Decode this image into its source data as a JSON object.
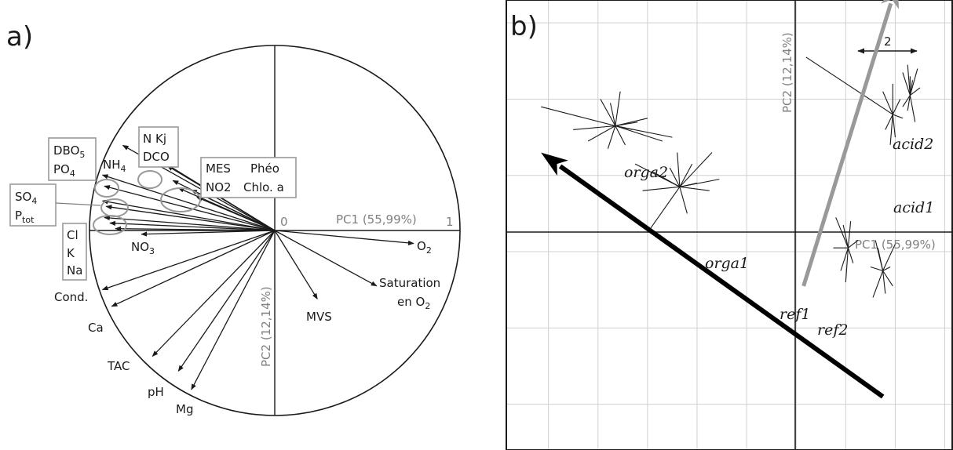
{
  "chart_data": [
    {
      "panel": "a)",
      "type": "scatter",
      "xlabel": "PC1 (55,99%)",
      "ylabel": "PC2 (12,14%)",
      "xlim": [
        -1,
        1
      ],
      "ylim": [
        -1,
        1
      ],
      "axis_ticks": {
        "origin": "0",
        "x_end": "1"
      },
      "grid": false,
      "vectors": [
        {
          "id": "nh4",
          "x": -0.82,
          "y": 0.46
        },
        {
          "id": "nkj",
          "x": -0.62,
          "y": 0.38
        },
        {
          "id": "dco",
          "x": -0.58,
          "y": 0.35
        },
        {
          "id": "mes",
          "x": -0.55,
          "y": 0.27
        },
        {
          "id": "pheo",
          "x": -0.52,
          "y": 0.23
        },
        {
          "id": "no2",
          "x": -0.45,
          "y": 0.22
        },
        {
          "id": "chloa",
          "x": -0.42,
          "y": 0.18
        },
        {
          "id": "dbo5",
          "x": -0.93,
          "y": 0.3
        },
        {
          "id": "po4",
          "x": -0.92,
          "y": 0.24
        },
        {
          "id": "so4",
          "x": -0.93,
          "y": 0.16
        },
        {
          "id": "ptot",
          "x": -0.91,
          "y": 0.13
        },
        {
          "id": "cl",
          "x": -0.92,
          "y": 0.07
        },
        {
          "id": "k",
          "x": -0.89,
          "y": 0.04
        },
        {
          "id": "na",
          "x": -0.86,
          "y": 0.01
        },
        {
          "id": "no3",
          "x": -0.72,
          "y": -0.02
        },
        {
          "id": "o2",
          "x": 0.75,
          "y": -0.07
        },
        {
          "id": "satO2",
          "x": 0.55,
          "y": -0.3
        },
        {
          "id": "mvs",
          "x": 0.23,
          "y": -0.37
        },
        {
          "id": "cond",
          "x": -0.93,
          "y": -0.32
        },
        {
          "id": "ca",
          "x": -0.88,
          "y": -0.41
        },
        {
          "id": "tac",
          "x": -0.66,
          "y": -0.68
        },
        {
          "id": "ph",
          "x": -0.52,
          "y": -0.76
        },
        {
          "id": "mg",
          "x": -0.45,
          "y": -0.86
        }
      ],
      "labels": {
        "nh4": [
          "NH",
          "4"
        ],
        "nkj_dco": [
          "N Kj",
          "DCO"
        ],
        "mes_group": [
          "MES",
          "Phéo",
          "NO2",
          "Chlo. a"
        ],
        "dbo_po": [
          "DBO",
          "5",
          "PO",
          "4"
        ],
        "so_ptot": [
          "SO",
          "4",
          "P",
          "tot"
        ],
        "cl_k_na": [
          "Cl",
          "K",
          "Na"
        ],
        "no3": [
          "NO",
          "3"
        ],
        "o2": [
          "O",
          "2"
        ],
        "sat": [
          "Saturation",
          "en O",
          "2"
        ],
        "mvs": "MVS",
        "cond": "Cond.",
        "ca": "Ca",
        "tac": "TAC",
        "ph": "pH",
        "mg": "Mg"
      }
    },
    {
      "panel": "b)",
      "type": "scatter",
      "xlabel": "PC1 (55,99%)",
      "ylabel": "PC2 (12,14%)",
      "xlim": [
        -11.7,
        6.3
      ],
      "ylim": [
        -7.2,
        4.6
      ],
      "grid": true,
      "grid_step": 2,
      "scale_label": "2",
      "groups": [
        {
          "name": "orga2",
          "center": [
            -7.3,
            1.3
          ],
          "points": [
            [
              -10.3,
              1.8
            ],
            [
              -9.0,
              1.2
            ],
            [
              -8.4,
              0.9
            ],
            [
              -7.9,
              2.0
            ],
            [
              -7.5,
              1.9
            ],
            [
              -7.1,
              2.2
            ],
            [
              -6.6,
              1.2
            ],
            [
              -6.4,
              1.4
            ],
            [
              -6.0,
              1.5
            ],
            [
              -5.4,
              0.9
            ],
            [
              -5.0,
              1.0
            ],
            [
              -7.6,
              0.7
            ],
            [
              -6.9,
              0.8
            ]
          ]
        },
        {
          "name": "orga1",
          "center": [
            -4.7,
            -0.3
          ],
          "points": [
            [
              -6.5,
              0.3
            ],
            [
              -5.8,
              0.1
            ],
            [
              -4.2,
              0.3
            ],
            [
              -4.0,
              -0.2
            ],
            [
              -3.4,
              0.6
            ],
            [
              -3.5,
              -0.4
            ],
            [
              -6.0,
              -1.5
            ],
            [
              -4.4,
              -1.0
            ],
            [
              -5.1,
              0.2
            ],
            [
              -6.2,
              -0.4
            ],
            [
              -3.1,
              -0.1
            ],
            [
              -4.8,
              0.6
            ]
          ]
        },
        {
          "name": "acid2",
          "center": [
            4.6,
            2.1
          ],
          "points": [
            [
              4.3,
              2.7
            ],
            [
              4.5,
              2.9
            ],
            [
              4.6,
              2.6
            ],
            [
              4.9,
              2.8
            ],
            [
              4.7,
              2.5
            ],
            [
              5.0,
              2.3
            ],
            [
              4.5,
              1.7
            ],
            [
              4.8,
              1.4
            ],
            [
              4.3,
              1.8
            ]
          ]
        },
        {
          "name": "acid1",
          "center": [
            3.9,
            1.6
          ],
          "points": [
            [
              0.4,
              3.1
            ],
            [
              3.5,
              2.2
            ],
            [
              3.9,
              2.4
            ],
            [
              4.2,
              2.0
            ],
            [
              3.8,
              0.8
            ],
            [
              4.0,
              1.0
            ],
            [
              3.6,
              1.2
            ],
            [
              4.3,
              1.5
            ]
          ]
        },
        {
          "name": "ref1",
          "center": [
            2.1,
            -1.9
          ],
          "points": [
            [
              1.6,
              -1.1
            ],
            [
              1.9,
              -1.3
            ],
            [
              2.2,
              -1.2
            ],
            [
              2.5,
              -1.7
            ],
            [
              2.3,
              -2.3
            ],
            [
              1.8,
              -2.5
            ],
            [
              2.0,
              -2.8
            ],
            [
              1.5,
              -1.9
            ]
          ]
        },
        {
          "name": "ref2",
          "center": [
            3.5,
            -2.5
          ],
          "points": [
            [
              3.2,
              -1.7
            ],
            [
              3.3,
              -1.9
            ],
            [
              4.0,
              -1.8
            ],
            [
              3.8,
              -2.4
            ],
            [
              3.6,
              -3.1
            ],
            [
              3.1,
              -3.2
            ],
            [
              3.0,
              -2.4
            ],
            [
              3.9,
              -2.9
            ]
          ]
        }
      ],
      "arrows": [
        {
          "color": "#000000",
          "from": [
            3.5,
            -5.8
          ],
          "to": [
            -10.3,
            0.6
          ]
        },
        {
          "color": "#999999",
          "from": [
            0.3,
            -2.9
          ],
          "to": [
            4.1,
            5.1
          ]
        }
      ]
    }
  ]
}
